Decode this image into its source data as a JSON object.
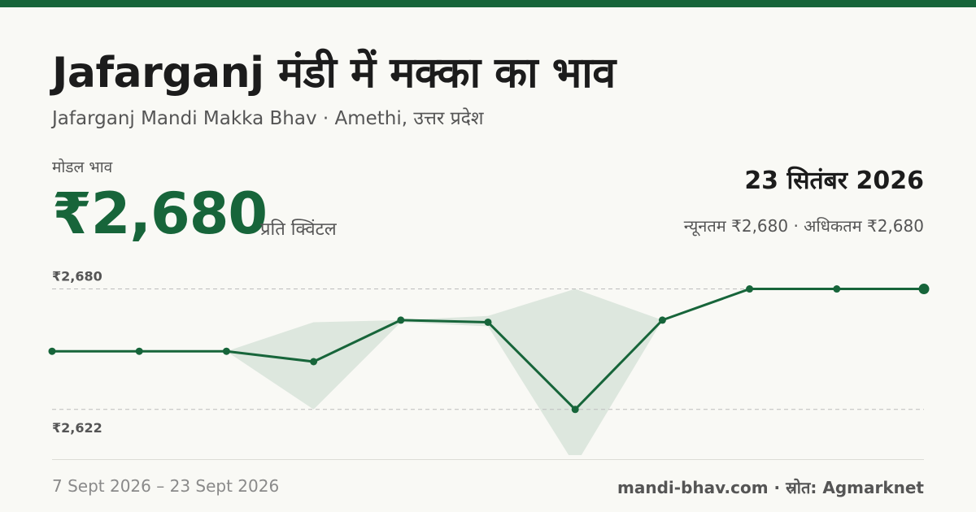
{
  "colors": {
    "brand": "#17653a",
    "band": "#dde7de",
    "grid": "#bdbdbd",
    "background": "#f9f9f5"
  },
  "header": {
    "title": "Jafarganj मंडी में मक्का का भाव",
    "subtitle": "Jafarganj Mandi Makka Bhav · Amethi, उत्तर प्रदेश"
  },
  "price": {
    "label": "मोडल भाव",
    "value": "₹2,680",
    "unit": "प्रति क्विंटल",
    "date": "23 सितंबर 2026",
    "range": "न्यूनतम ₹2,680 · अधिकतम ₹2,680"
  },
  "chart_data": {
    "type": "line",
    "ylim": [
      2600,
      2690
    ],
    "gridlines": [
      {
        "value": 2680,
        "label": "₹2,680"
      },
      {
        "value": 2622,
        "label": "₹2,622"
      }
    ],
    "series": [
      {
        "values": [
          2650,
          2650,
          2650,
          2645,
          2665,
          2664,
          2622,
          2665,
          2680,
          2680,
          2680
        ]
      }
    ],
    "band": {
      "min": [
        2650,
        2650,
        2650,
        2622,
        2664,
        2662,
        2595,
        2665,
        2680,
        2680,
        2680
      ],
      "max": [
        2650,
        2650,
        2650,
        2664,
        2665,
        2667,
        2680,
        2665,
        2680,
        2680,
        2680
      ]
    }
  },
  "footer": {
    "date_range": "7 Sept 2026 – 23 Sept 2026",
    "source": "mandi-bhav.com · स्रोत: Agmarknet"
  }
}
